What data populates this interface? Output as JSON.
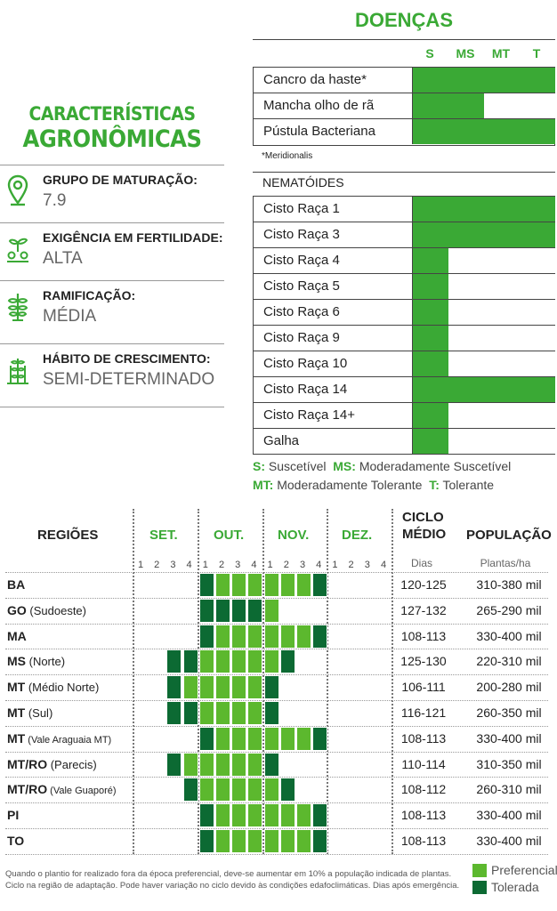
{
  "characteristics": {
    "title_line1": "CARACTERÍSTICAS",
    "title_line2": "AGRONÔMICAS",
    "items": [
      {
        "label": "GRUPO DE MATURAÇÃO:",
        "value": "7.9",
        "icon": "location-pin-icon"
      },
      {
        "label": "EXIGÊNCIA EM FERTILIDADE:",
        "value": "ALTA",
        "icon": "fertility-seedling-icon"
      },
      {
        "label": "RAMIFICAÇÃO:",
        "value": "MÉDIA",
        "icon": "branching-plant-icon"
      },
      {
        "label": "HÁBITO DE CRESCIMENTO:",
        "value": "SEMI-DETERMINADO",
        "icon": "growth-plant-icon"
      }
    ]
  },
  "diseases": {
    "title": "DOENÇAS",
    "columns": [
      "S",
      "MS",
      "MT",
      "T"
    ],
    "rows": [
      {
        "name": "Cancro da haste*",
        "level": "T"
      },
      {
        "name": "Mancha olho de rã",
        "level": "MS"
      },
      {
        "name": "Pústula Bacteriana",
        "level": "T"
      }
    ],
    "footnote": "*Meridionalis",
    "nematodes_title": "NEMATÓIDES",
    "nematodes": [
      {
        "name": "Cisto Raça 1",
        "level": "T"
      },
      {
        "name": "Cisto Raça 3",
        "level": "T"
      },
      {
        "name": "Cisto Raça 4",
        "level": "S"
      },
      {
        "name": "Cisto Raça 5",
        "level": "S"
      },
      {
        "name": "Cisto Raça 6",
        "level": "S"
      },
      {
        "name": "Cisto Raça 9",
        "level": "S"
      },
      {
        "name": "Cisto Raça 10",
        "level": "S"
      },
      {
        "name": "Cisto Raça 14",
        "level": "T"
      },
      {
        "name": "Cisto Raça 14+",
        "level": "S"
      },
      {
        "name": "Galha",
        "level": "S"
      }
    ],
    "legend": {
      "s_key": "S:",
      "s_text": "Suscetível",
      "ms_key": "MS:",
      "ms_text": "Moderadamente Suscetível",
      "mt_key": "MT:",
      "mt_text": "Moderadamente Tolerante",
      "t_key": "T:",
      "t_text": "Tolerante"
    }
  },
  "regions_table": {
    "header": {
      "regions": "REGIÕES",
      "months": [
        "SET.",
        "OUT.",
        "NOV.",
        "DEZ."
      ],
      "weeks": [
        "1",
        "2",
        "3",
        "4"
      ],
      "ciclo_line1": "CICLO",
      "ciclo_line2": "MÉDIO",
      "ciclo_unit": "Dias",
      "populacao": "POPULAÇÃO",
      "populacao_unit": "Plantas/ha"
    },
    "rows": [
      {
        "bold": "BA",
        "rest": "",
        "ciclo": "120-125",
        "pop": "310-380 mil",
        "weeks": [
          "",
          "",
          "",
          "",
          "T",
          "P",
          "P",
          "P",
          "P",
          "P",
          "P",
          "T",
          "",
          "",
          "",
          ""
        ]
      },
      {
        "bold": "GO",
        "rest": " (Sudoeste)",
        "ciclo": "127-132",
        "pop": "265-290 mil",
        "weeks": [
          "",
          "",
          "",
          "",
          "T",
          "T",
          "T",
          "T",
          "P",
          "",
          "",
          "",
          "",
          "",
          "",
          ""
        ]
      },
      {
        "bold": "MA",
        "rest": "",
        "ciclo": "108-113",
        "pop": "330-400 mil",
        "weeks": [
          "",
          "",
          "",
          "",
          "T",
          "P",
          "P",
          "P",
          "P",
          "P",
          "P",
          "T",
          "",
          "",
          "",
          ""
        ]
      },
      {
        "bold": "MS",
        "rest": " (Norte)",
        "ciclo": "125-130",
        "pop": "220-310 mil",
        "weeks": [
          "",
          "",
          "T",
          "T",
          "P",
          "P",
          "P",
          "P",
          "P",
          "T",
          "",
          "",
          "",
          "",
          "",
          ""
        ]
      },
      {
        "bold": "MT",
        "rest": " (Médio Norte)",
        "ciclo": "106-111",
        "pop": "200-280 mil",
        "weeks": [
          "",
          "",
          "T",
          "P",
          "P",
          "P",
          "P",
          "P",
          "T",
          "",
          "",
          "",
          "",
          "",
          "",
          ""
        ]
      },
      {
        "bold": "MT",
        "rest": " (Sul)",
        "ciclo": "116-121",
        "pop": "260-350 mil",
        "weeks": [
          "",
          "",
          "T",
          "T",
          "P",
          "P",
          "P",
          "P",
          "T",
          "",
          "",
          "",
          "",
          "",
          "",
          ""
        ]
      },
      {
        "bold": "MT",
        "rest": " (Vale Araguaia MT)",
        "small": true,
        "ciclo": "108-113",
        "pop": "330-400 mil",
        "weeks": [
          "",
          "",
          "",
          "",
          "T",
          "P",
          "P",
          "P",
          "P",
          "P",
          "P",
          "T",
          "",
          "",
          "",
          ""
        ]
      },
      {
        "bold": "MT/RO",
        "rest": " (Parecis)",
        "ciclo": "110-114",
        "pop": "310-350 mil",
        "weeks": [
          "",
          "",
          "T",
          "P",
          "P",
          "P",
          "P",
          "P",
          "T",
          "",
          "",
          "",
          "",
          "",
          "",
          ""
        ]
      },
      {
        "bold": "MT/RO",
        "rest": " (Vale Guaporé)",
        "small": true,
        "ciclo": "108-112",
        "pop": "260-310 mil",
        "weeks": [
          "",
          "",
          "",
          "T",
          "P",
          "P",
          "P",
          "P",
          "P",
          "T",
          "",
          "",
          "",
          "",
          "",
          ""
        ]
      },
      {
        "bold": "PI",
        "rest": "",
        "ciclo": "108-113",
        "pop": "330-400 mil",
        "weeks": [
          "",
          "",
          "",
          "",
          "T",
          "P",
          "P",
          "P",
          "P",
          "P",
          "P",
          "T",
          "",
          "",
          "",
          ""
        ]
      },
      {
        "bold": "TO",
        "rest": "",
        "ciclo": "108-113",
        "pop": "330-400 mil",
        "weeks": [
          "",
          "",
          "",
          "",
          "T",
          "P",
          "P",
          "P",
          "P",
          "P",
          "P",
          "T",
          "",
          "",
          "",
          ""
        ]
      }
    ],
    "footnote_line1": "Quando o plantio for realizado fora da época preferencial, deve-se aumentar em 10% a população indicada de plantas.",
    "footnote_line2": "Ciclo na região de adaptação. Pode haver variação no ciclo devido às condições edafoclimáticas. Dias após emergência.",
    "legend_preferencial": "Preferencial",
    "legend_tolerada": "Tolerada",
    "colors": {
      "preferencial": "#5cb82e",
      "tolerada": "#0c6a33"
    }
  }
}
